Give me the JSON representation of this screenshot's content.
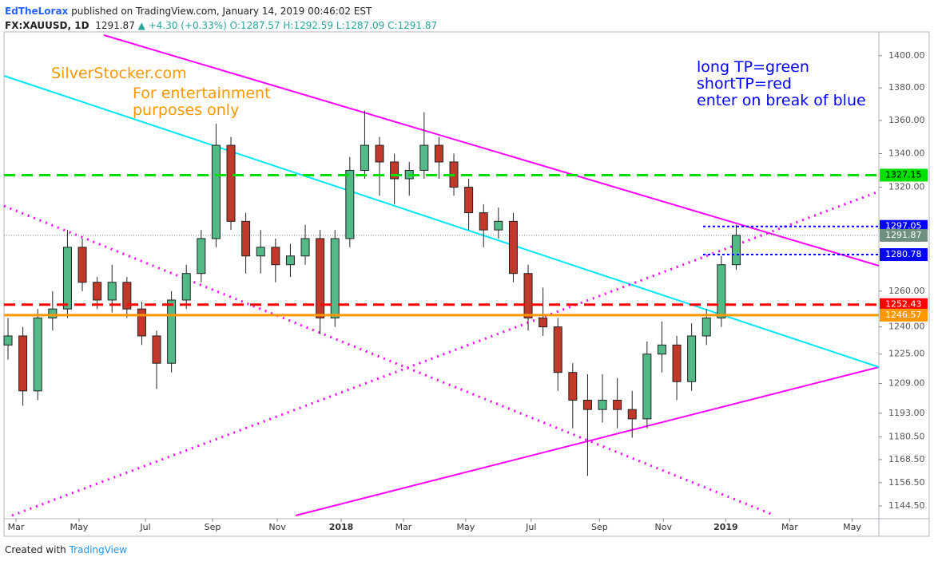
{
  "header": {
    "author": "EdTheLorax",
    "published": "published on TradingView.com, January 14, 2019 00:46:02 EST",
    "symbol": "FX:XAUUSD, 1D",
    "last": "1291.87",
    "change": "▲ +4.30 (+0.33%)",
    "ohlc": [
      "O:1287.57",
      "H:1292.59",
      "L:1287.09",
      "C:1291.87"
    ]
  },
  "chart_data": {
    "type": "candlestick",
    "log_scale": true,
    "grid": false,
    "categories": [
      null,
      null,
      null,
      null,
      null,
      null,
      null,
      null,
      null,
      null,
      null,
      null,
      null,
      null,
      null,
      null,
      null,
      null,
      null,
      null,
      null,
      null,
      null,
      null,
      null,
      null,
      null,
      null,
      null,
      null,
      null,
      null,
      null,
      null,
      null,
      null,
      null,
      null,
      null,
      null,
      null,
      null,
      null,
      null,
      null,
      null,
      null,
      null,
      null,
      null
    ],
    "open": [
      1230,
      1235,
      1205,
      1245,
      1250,
      1285,
      1265,
      1255,
      1265,
      1250,
      1235,
      1220,
      1255,
      1270,
      1290,
      1345,
      1300,
      1280,
      1285,
      1275,
      1280,
      1290,
      1245,
      1290,
      1330,
      1345,
      1335,
      1325,
      1330,
      1345,
      1335,
      1320,
      1305,
      1295,
      1300,
      1270,
      1245,
      1240,
      1215,
      1200,
      1195,
      1200,
      1195,
      1190,
      1225,
      1230,
      1210,
      1235,
      1245,
      1275
    ],
    "high": [
      1245,
      1240,
      1250,
      1260,
      1295,
      1290,
      1268,
      1275,
      1268,
      1254,
      1238,
      1260,
      1275,
      1295,
      1358,
      1350,
      1305,
      1295,
      1290,
      1287,
      1298,
      1295,
      1295,
      1338,
      1366,
      1350,
      1340,
      1335,
      1365,
      1350,
      1340,
      1325,
      1310,
      1308,
      1305,
      1275,
      1262,
      1245,
      1220,
      1214,
      1214,
      1212,
      1205,
      1232,
      1243,
      1235,
      1242,
      1250,
      1280,
      1298
    ],
    "low": [
      1222,
      1197,
      1200,
      1238,
      1245,
      1260,
      1250,
      1248,
      1245,
      1230,
      1206,
      1215,
      1250,
      1265,
      1285,
      1295,
      1270,
      1270,
      1265,
      1268,
      1275,
      1236,
      1240,
      1285,
      1325,
      1315,
      1310,
      1315,
      1325,
      1325,
      1315,
      1295,
      1285,
      1290,
      1265,
      1238,
      1235,
      1205,
      1185,
      1160,
      1188,
      1185,
      1180,
      1185,
      1215,
      1200,
      1205,
      1230,
      1240,
      1272
    ],
    "close": [
      1235,
      1205,
      1245,
      1250,
      1285,
      1265,
      1255,
      1265,
      1250,
      1235,
      1220,
      1255,
      1270,
      1290,
      1345,
      1300,
      1280,
      1285,
      1275,
      1280,
      1290,
      1245,
      1290,
      1330,
      1345,
      1335,
      1325,
      1330,
      1345,
      1335,
      1320,
      1305,
      1295,
      1300,
      1270,
      1245,
      1240,
      1215,
      1200,
      1195,
      1200,
      1195,
      1190,
      1225,
      1230,
      1210,
      1235,
      1245,
      1275,
      1291.87
    ],
    "up_color": "#53b987",
    "down_color": "#c0392b",
    "ylim": [
      1138,
      1415
    ],
    "yticks": [
      {
        "value": 1400,
        "label": "1400.00"
      },
      {
        "value": 1380,
        "label": "1380.00"
      },
      {
        "value": 1360,
        "label": "1360.00"
      },
      {
        "value": 1340,
        "label": "1340.00"
      },
      {
        "value": 1320,
        "label": "1320.00"
      },
      {
        "value": 1260,
        "label": "1260.00"
      },
      {
        "value": 1240,
        "label": "1240.00"
      },
      {
        "value": 1225,
        "label": "1225.00"
      },
      {
        "value": 1209,
        "label": "1209.00"
      },
      {
        "value": 1193,
        "label": "1193.00"
      },
      {
        "value": 1180.5,
        "label": "1180.50"
      },
      {
        "value": 1168.5,
        "label": "1168.50"
      },
      {
        "value": 1156.5,
        "label": "1156.50"
      },
      {
        "value": 1144.5,
        "label": "1144.50"
      }
    ],
    "xlim": [
      -0.27,
      58.6
    ],
    "xticks": [
      {
        "value": 0.54,
        "label": "Mar"
      },
      {
        "value": 4.78,
        "label": "May"
      },
      {
        "value": 9.25,
        "label": "Jul"
      },
      {
        "value": 13.76,
        "label": "Sep"
      },
      {
        "value": 18.12,
        "label": "Nov"
      },
      {
        "value": 22.42,
        "label": "2018"
      },
      {
        "value": 26.61,
        "label": "Mar"
      },
      {
        "value": 30.8,
        "label": "May"
      },
      {
        "value": 35.2,
        "label": "Jul"
      },
      {
        "value": 39.8,
        "label": "Sep"
      },
      {
        "value": 44.1,
        "label": "Nov"
      },
      {
        "value": 48.3,
        "label": "2019"
      },
      {
        "value": 52.6,
        "label": "Mar"
      },
      {
        "value": 56.8,
        "label": "May"
      }
    ],
    "levels": [
      {
        "value": 1327.15,
        "color": "#00e000",
        "style": "dashed"
      },
      {
        "value": 1252.43,
        "color": "#ff0000",
        "style": "dashed"
      },
      {
        "value": 1246.57,
        "color": "#ff9800",
        "style": "solid"
      },
      {
        "value": 1297.05,
        "color": "#0000ff",
        "style": "dotted"
      },
      {
        "value": 1280.78,
        "color": "#0000ff",
        "style": "dotted"
      }
    ],
    "last_price": 1291.87,
    "last_color": "#6f8f7f",
    "annotations": {
      "site": "SilverStocker.com",
      "note": [
        "For entertainment",
        "purposes only"
      ],
      "legend": [
        "long TP=green",
        "shortTP=red",
        "enter on break of blue"
      ]
    }
  },
  "footer": {
    "created": "Created with",
    "brand": "TradingView"
  }
}
